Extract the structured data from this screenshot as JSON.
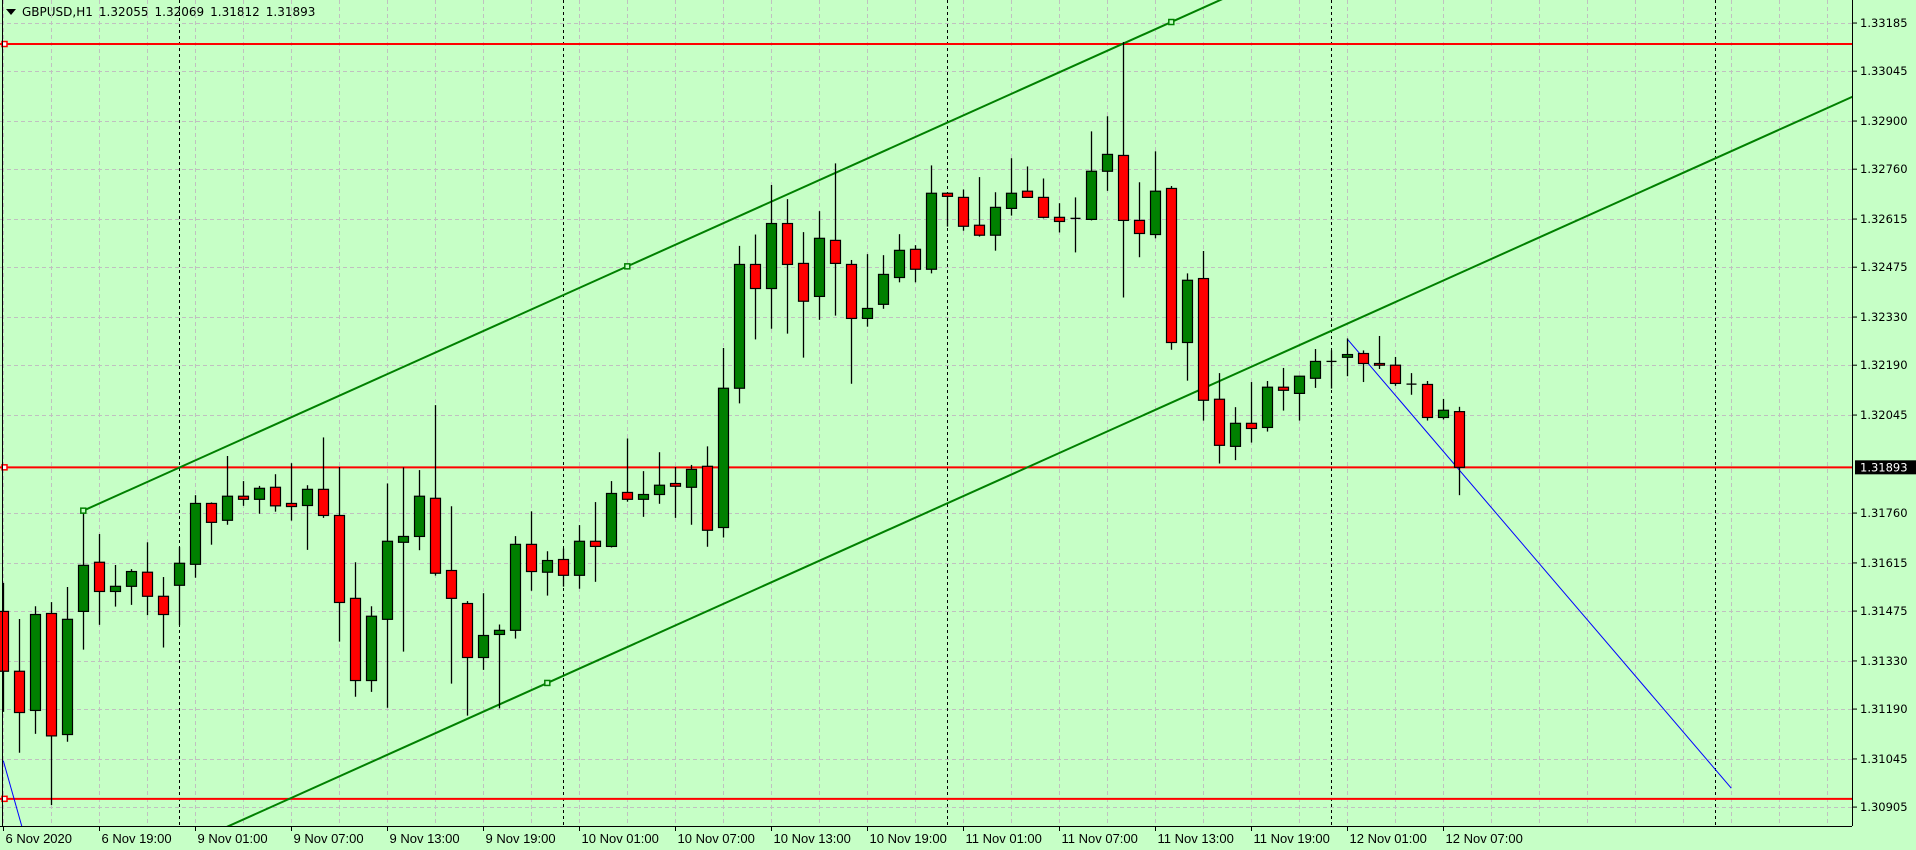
{
  "header": {
    "menu_icon": "triangle-down-icon",
    "symbol_timeframe": "GBPUSD,H1",
    "open": "1.32055",
    "high": "1.32069",
    "low": "1.31812",
    "close": "1.31893"
  },
  "colors": {
    "background": "#c6ffc6",
    "bull_candle": "#008000",
    "bear_candle": "#ff0000",
    "candle_outline": "#000000",
    "grid": "#c0c0c0",
    "horizontal_line": "#ff0000",
    "channel": "#008000",
    "trendline": "#0000ff",
    "period_separator": "#000000",
    "price_label_bg": "#000000",
    "price_label_text": "#ffffff"
  },
  "chart_data": {
    "type": "candlestick",
    "symbol": "GBPUSD",
    "timeframe": "H1",
    "ylim": [
      1.3085,
      1.33252
    ],
    "grid": true,
    "current_price": "1.31893",
    "y_ticks": [
      "1.33185",
      "1.33045",
      "1.32900",
      "1.32760",
      "1.32615",
      "1.32475",
      "1.32330",
      "1.32190",
      "1.32045",
      "1.31760",
      "1.31615",
      "1.31475",
      "1.31330",
      "1.31190",
      "1.31045",
      "1.30905"
    ],
    "x_tick_labels": [
      {
        "time": "2020.11.06 13:00",
        "label": "6 Nov 2020"
      },
      {
        "time": "2020.11.06 19:00",
        "label": "6 Nov 19:00"
      },
      {
        "time": "2020.11.09 01:00",
        "label": "9 Nov 01:00"
      },
      {
        "time": "2020.11.09 07:00",
        "label": "9 Nov 07:00"
      },
      {
        "time": "2020.11.09 13:00",
        "label": "9 Nov 13:00"
      },
      {
        "time": "2020.11.09 19:00",
        "label": "9 Nov 19:00"
      },
      {
        "time": "2020.11.10 01:00",
        "label": "10 Nov 01:00"
      },
      {
        "time": "2020.11.10 07:00",
        "label": "10 Nov 07:00"
      },
      {
        "time": "2020.11.10 13:00",
        "label": "10 Nov 13:00"
      },
      {
        "time": "2020.11.10 19:00",
        "label": "10 Nov 19:00"
      },
      {
        "time": "2020.11.11 01:00",
        "label": "11 Nov 01:00"
      },
      {
        "time": "2020.11.11 07:00",
        "label": "11 Nov 07:00"
      },
      {
        "time": "2020.11.11 13:00",
        "label": "11 Nov 13:00"
      },
      {
        "time": "2020.11.11 19:00",
        "label": "11 Nov 19:00"
      },
      {
        "time": "2020.11.12 01:00",
        "label": "12 Nov 01:00"
      },
      {
        "time": "2020.11.12 07:00",
        "label": "12 Nov 07:00"
      }
    ],
    "candles_columns": [
      "time",
      "open",
      "high",
      "low",
      "close"
    ],
    "candles": [
      [
        "2020.11.06 13:00",
        1.31474,
        1.31557,
        1.31182,
        1.313
      ],
      [
        "2020.11.06 14:00",
        1.313,
        1.31452,
        1.31063,
        1.3118
      ],
      [
        "2020.11.06 15:00",
        1.31186,
        1.31489,
        1.31118,
        1.31465
      ],
      [
        "2020.11.06 16:00",
        1.31468,
        1.31501,
        1.30911,
        1.31112
      ],
      [
        "2020.11.06 17:00",
        1.31116,
        1.31545,
        1.31095,
        1.31451
      ],
      [
        "2020.11.06 18:00",
        1.31474,
        1.31767,
        1.31363,
        1.31608
      ],
      [
        "2020.11.06 19:00",
        1.31617,
        1.31699,
        1.31435,
        1.31532
      ],
      [
        "2020.11.06 20:00",
        1.31532,
        1.31609,
        1.31488,
        1.31547
      ],
      [
        "2020.11.06 21:00",
        1.31547,
        1.31597,
        1.31493,
        1.3159
      ],
      [
        "2020.11.06 22:00",
        1.31588,
        1.31675,
        1.31463,
        1.31518
      ],
      [
        "2020.11.06 23:00",
        1.31518,
        1.31574,
        1.31369,
        1.31465
      ],
      [
        "2020.11.09 00:00",
        1.3155,
        1.31661,
        1.31434,
        1.31614
      ],
      [
        "2020.11.09 01:00",
        1.31611,
        1.31812,
        1.31572,
        1.31788
      ],
      [
        "2020.11.09 02:00",
        1.31788,
        1.31791,
        1.31668,
        1.31733
      ],
      [
        "2020.11.09 03:00",
        1.31739,
        1.31926,
        1.31726,
        1.31809
      ],
      [
        "2020.11.09 04:00",
        1.31809,
        1.31853,
        1.31781,
        1.318
      ],
      [
        "2020.11.09 05:00",
        1.318,
        1.31839,
        1.31758,
        1.31832
      ],
      [
        "2020.11.09 06:00",
        1.31835,
        1.31873,
        1.31764,
        1.31781
      ],
      [
        "2020.11.09 07:00",
        1.31788,
        1.31905,
        1.31738,
        1.31779
      ],
      [
        "2020.11.09 08:00",
        1.31782,
        1.31841,
        1.31653,
        1.31829
      ],
      [
        "2020.11.09 09:00",
        1.31829,
        1.3198,
        1.31746,
        1.31753
      ],
      [
        "2020.11.09 10:00",
        1.31753,
        1.31894,
        1.31386,
        1.315
      ],
      [
        "2020.11.09 11:00",
        1.31512,
        1.31617,
        1.31226,
        1.31273
      ],
      [
        "2020.11.09 12:00",
        1.31273,
        1.31489,
        1.3124,
        1.3146
      ],
      [
        "2020.11.09 13:00",
        1.31451,
        1.31846,
        1.31194,
        1.31678
      ],
      [
        "2020.11.09 14:00",
        1.31675,
        1.31893,
        1.31357,
        1.31692
      ],
      [
        "2020.11.09 15:00",
        1.31692,
        1.31885,
        1.31652,
        1.31809
      ],
      [
        "2020.11.09 16:00",
        1.31803,
        1.32074,
        1.31578,
        1.31585
      ],
      [
        "2020.11.09 17:00",
        1.31593,
        1.3178,
        1.31264,
        1.31512
      ],
      [
        "2020.11.09 18:00",
        1.31497,
        1.31504,
        1.31171,
        1.3134
      ],
      [
        "2020.11.09 19:00",
        1.3134,
        1.31527,
        1.31304,
        1.31404
      ],
      [
        "2020.11.09 20:00",
        1.31407,
        1.31436,
        1.31192,
        1.31419
      ],
      [
        "2020.11.09 21:00",
        1.31419,
        1.31693,
        1.31395,
        1.31669
      ],
      [
        "2020.11.09 22:00",
        1.31669,
        1.31765,
        1.31534,
        1.3159
      ],
      [
        "2020.11.09 23:00",
        1.31588,
        1.31649,
        1.3152,
        1.31622
      ],
      [
        "2020.11.10 00:00",
        1.31625,
        1.31657,
        1.31546,
        1.31579
      ],
      [
        "2020.11.10 01:00",
        1.31579,
        1.31725,
        1.3154,
        1.31678
      ],
      [
        "2020.11.10 02:00",
        1.31678,
        1.31792,
        1.3156,
        1.31663
      ],
      [
        "2020.11.10 03:00",
        1.31663,
        1.31853,
        1.3166,
        1.31817
      ],
      [
        "2020.11.10 04:00",
        1.3182,
        1.31977,
        1.31793,
        1.318
      ],
      [
        "2020.11.10 05:00",
        1.318,
        1.31882,
        1.31749,
        1.31814
      ],
      [
        "2020.11.10 06:00",
        1.31814,
        1.31937,
        1.31787,
        1.31841
      ],
      [
        "2020.11.10 07:00",
        1.31846,
        1.31894,
        1.31746,
        1.31838
      ],
      [
        "2020.11.10 08:00",
        1.31835,
        1.319,
        1.31726,
        1.31887
      ],
      [
        "2020.11.10 09:00",
        1.31896,
        1.31954,
        1.31662,
        1.3171
      ],
      [
        "2020.11.10 10:00",
        1.31718,
        1.3224,
        1.31689,
        1.32123
      ],
      [
        "2020.11.10 11:00",
        1.32123,
        1.32537,
        1.32079,
        1.32483
      ],
      [
        "2020.11.10 12:00",
        1.32483,
        1.3257,
        1.32265,
        1.32413
      ],
      [
        "2020.11.10 13:00",
        1.32413,
        1.32714,
        1.32296,
        1.32602
      ],
      [
        "2020.11.10 14:00",
        1.32602,
        1.32673,
        1.32282,
        1.32483
      ],
      [
        "2020.11.10 15:00",
        1.32486,
        1.32577,
        1.32212,
        1.32376
      ],
      [
        "2020.11.10 16:00",
        1.3239,
        1.32638,
        1.32322,
        1.32559
      ],
      [
        "2020.11.10 17:00",
        1.32553,
        1.32777,
        1.32334,
        1.32486
      ],
      [
        "2020.11.10 18:00",
        1.32483,
        1.32496,
        1.32136,
        1.32326
      ],
      [
        "2020.11.10 19:00",
        1.32326,
        1.32513,
        1.32302,
        1.32355
      ],
      [
        "2020.11.10 20:00",
        1.32367,
        1.3251,
        1.32354,
        1.32454
      ],
      [
        "2020.11.10 21:00",
        1.32445,
        1.32571,
        1.32431,
        1.32524
      ],
      [
        "2020.11.10 22:00",
        1.32527,
        1.32539,
        1.32431,
        1.32469
      ],
      [
        "2020.11.10 23:00",
        1.32469,
        1.32771,
        1.32457,
        1.3269
      ],
      [
        "2020.11.11 00:00",
        1.3269,
        1.32692,
        1.32593,
        1.32681
      ],
      [
        "2020.11.11 01:00",
        1.32678,
        1.32701,
        1.32581,
        1.32594
      ],
      [
        "2020.11.11 02:00",
        1.32597,
        1.32737,
        1.32564,
        1.32568
      ],
      [
        "2020.11.11 03:00",
        1.32568,
        1.32693,
        1.32523,
        1.32649
      ],
      [
        "2020.11.11 04:00",
        1.32646,
        1.32792,
        1.32625,
        1.3269
      ],
      [
        "2020.11.11 05:00",
        1.32696,
        1.32768,
        1.32678,
        1.32678
      ],
      [
        "2020.11.11 06:00",
        1.32678,
        1.32733,
        1.32617,
        1.3262
      ],
      [
        "2020.11.11 07:00",
        1.3262,
        1.32661,
        1.32576,
        1.32608
      ],
      [
        "2020.11.11 08:00",
        1.32617,
        1.32678,
        1.32518,
        1.32617
      ],
      [
        "2020.11.11 09:00",
        1.32614,
        1.3287,
        1.32611,
        1.32754
      ],
      [
        "2020.11.11 10:00",
        1.32754,
        1.32914,
        1.32697,
        1.32803
      ],
      [
        "2020.11.11 11:00",
        1.328,
        1.3313,
        1.32387,
        1.32611
      ],
      [
        "2020.11.11 12:00",
        1.32611,
        1.32722,
        1.32504,
        1.32573
      ],
      [
        "2020.11.11 13:00",
        1.3257,
        1.32812,
        1.32559,
        1.32696
      ],
      [
        "2020.11.11 14:00",
        1.32704,
        1.32711,
        1.32235,
        1.32256
      ],
      [
        "2020.11.11 15:00",
        1.32256,
        1.32457,
        1.32145,
        1.32437
      ],
      [
        "2020.11.11 16:00",
        1.32442,
        1.32522,
        1.32029,
        1.32088
      ],
      [
        "2020.11.11 17:00",
        1.32091,
        1.32167,
        1.31904,
        1.31957
      ],
      [
        "2020.11.11 18:00",
        1.31954,
        1.32068,
        1.31914,
        1.32021
      ],
      [
        "2020.11.11 19:00",
        1.32021,
        1.32141,
        1.31965,
        1.32006
      ],
      [
        "2020.11.11 20:00",
        1.32009,
        1.32144,
        1.31997,
        1.32126
      ],
      [
        "2020.11.11 21:00",
        1.32126,
        1.32182,
        1.32058,
        1.32117
      ],
      [
        "2020.11.11 22:00",
        1.32108,
        1.3216,
        1.32029,
        1.32158
      ],
      [
        "2020.11.11 23:00",
        1.32152,
        1.32237,
        1.32124,
        1.32201
      ],
      [
        "2020.11.12 00:00",
        1.32201,
        1.32233,
        1.32122,
        1.32201
      ],
      [
        "2020.11.12 01:00",
        1.32213,
        1.32268,
        1.32158,
        1.32221
      ],
      [
        "2020.11.12 02:00",
        1.32224,
        1.32233,
        1.32141,
        1.32195
      ],
      [
        "2020.11.12 03:00",
        1.32195,
        1.32275,
        1.32179,
        1.3219
      ],
      [
        "2020.11.12 04:00",
        1.3219,
        1.32214,
        1.3213,
        1.32137
      ],
      [
        "2020.11.12 05:00",
        1.32135,
        1.32167,
        1.32104,
        1.32135
      ],
      [
        "2020.11.12 06:00",
        1.32134,
        1.32144,
        1.32029,
        1.32038
      ],
      [
        "2020.11.12 07:00",
        1.32038,
        1.32092,
        1.32032,
        1.32059
      ],
      [
        "2020.11.12 08:00",
        1.32055,
        1.32069,
        1.31812,
        1.31893
      ]
    ],
    "horizontal_lines": [
      1.33124,
      1.31893,
      1.30929
    ],
    "period_separators": [
      "2020.11.09 00:00",
      "2020.11.10 00:00",
      "2020.11.11 00:00",
      "2020.11.12 00:00",
      "2020.11.13 00:00"
    ],
    "channel": {
      "p1": [
        "2020.11.06 18:00",
        1.31767
      ],
      "p2": [
        "2020.11.11 14:00",
        1.33188
      ],
      "p3": [
        "2020.11.09 23:00",
        1.31266
      ]
    },
    "trendlines": [
      {
        "p1": [
          "2020.11.12 01:00",
          1.32266
        ],
        "p2": [
          "2020.11.13 01:00",
          1.3096
        ]
      },
      {
        "p1": [
          "2020.11.06 13:00",
          1.3104
        ],
        "p2": [
          "2020.11.06 15:00",
          1.3071
        ]
      }
    ]
  }
}
